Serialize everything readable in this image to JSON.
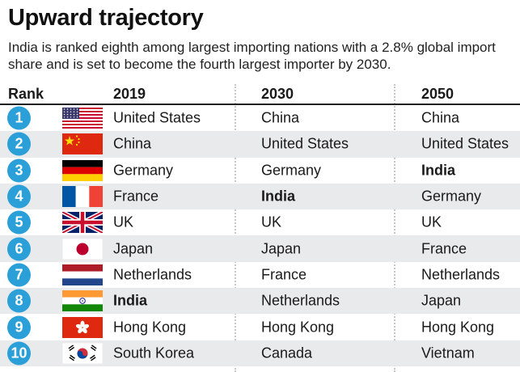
{
  "title": "Upward trajectory",
  "subtitle": "India is ranked eighth among largest importing nations with a 2.8% global import share and is set to become the fourth largest importer by 2030.",
  "chart_data": {
    "type": "table",
    "columns": [
      "Rank",
      "2019",
      "2030",
      "2050"
    ],
    "highlight": "India",
    "rows": [
      {
        "rank": "1",
        "flag": "us-flag-icon",
        "y2019": "United States",
        "y2030": "China",
        "y2050": "China"
      },
      {
        "rank": "2",
        "flag": "china-flag-icon",
        "y2019": "China",
        "y2030": "United States",
        "y2050": "United States"
      },
      {
        "rank": "3",
        "flag": "germany-flag-icon",
        "y2019": "Germany",
        "y2030": "Germany",
        "y2050": "India"
      },
      {
        "rank": "4",
        "flag": "france-flag-icon",
        "y2019": "France",
        "y2030": "India",
        "y2050": "Germany"
      },
      {
        "rank": "5",
        "flag": "uk-flag-icon",
        "y2019": "UK",
        "y2030": "UK",
        "y2050": "UK"
      },
      {
        "rank": "6",
        "flag": "japan-flag-icon",
        "y2019": "Japan",
        "y2030": "Japan",
        "y2050": "France"
      },
      {
        "rank": "7",
        "flag": "netherlands-flag-icon",
        "y2019": "Netherlands",
        "y2030": "France",
        "y2050": "Netherlands"
      },
      {
        "rank": "8",
        "flag": "india-flag-icon",
        "y2019": "India",
        "y2030": "Netherlands",
        "y2050": "Japan"
      },
      {
        "rank": "9",
        "flag": "hong-kong-flag-icon",
        "y2019": "Hong Kong",
        "y2030": "Hong Kong",
        "y2050": "Hong Kong"
      },
      {
        "rank": "10",
        "flag": "south-korea-flag-icon",
        "y2019": "South Korea",
        "y2030": "Canada",
        "y2050": "Vietnam"
      }
    ]
  },
  "colors": {
    "badge": "#2a9fd8",
    "alt_row": "#e9eaec"
  }
}
